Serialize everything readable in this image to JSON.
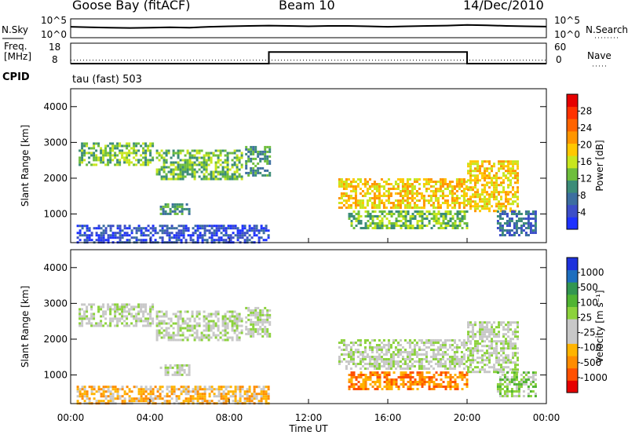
{
  "header": {
    "station": "Goose Bay (fitACF)",
    "beam": "Beam 10",
    "date": "14/Dec/2010",
    "cpid_label": "CPID",
    "cpid_value": "tau (fast) 503"
  },
  "chart_data": [
    {
      "type": "line",
      "name": "noise-panel",
      "left_label": "N.Sky",
      "right_label": "N.Search",
      "left_ticks": [
        "10^5",
        "10^0"
      ],
      "right_ticks": [
        "10^5",
        "10^0"
      ],
      "series": [
        {
          "values": [
            0.55,
            0.52,
            0.5,
            0.48,
            0.5,
            0.52,
            0.5,
            0.55,
            0.58,
            0.6,
            0.62,
            0.6,
            0.58,
            0.6,
            0.6,
            0.58,
            0.55,
            0.58,
            0.6,
            0.62,
            0.66,
            0.64,
            0.6,
            0.58,
            0.56
          ]
        }
      ]
    },
    {
      "type": "line",
      "name": "freq-nave-panel",
      "left_label_line1": "Freq.",
      "left_label_line2": "[MHz]",
      "right_label": "Nave",
      "left_ticks": [
        "18",
        "8"
      ],
      "right_ticks": [
        "60",
        "0"
      ],
      "frequency_mhz": {
        "x_hours": [
          0,
          10,
          10,
          20,
          20,
          24
        ],
        "values": [
          8,
          8,
          13.7,
          13.7,
          8,
          8
        ]
      },
      "nave": {
        "x_hours": [
          0,
          24
        ],
        "values": [
          10,
          10
        ]
      }
    },
    {
      "type": "heatmap",
      "name": "power-panel",
      "ylabel": "Slant Range [km]",
      "xlim": [
        0,
        24
      ],
      "ylim": [
        200,
        4500
      ],
      "yticks": [
        1000,
        2000,
        3000,
        4000
      ],
      "colorbar": {
        "label": "Power [dB]",
        "ticks": [
          "4",
          "8",
          "12",
          "16",
          "20",
          "24",
          "28"
        ],
        "colors": [
          "#1e32ff",
          "#3c4ec8",
          "#3c6ea0",
          "#3c8c78",
          "#6ebe3c",
          "#c8e61e",
          "#ffc800",
          "#ff9600",
          "#ff6400",
          "#ff3200",
          "#e60000"
        ]
      },
      "regions": [
        {
          "x0": 0.3,
          "x1": 10,
          "y0": 200,
          "y1": 700,
          "level": 1
        },
        {
          "x0": 0.4,
          "x1": 4.2,
          "y0": 2400,
          "y1": 3000,
          "level": 4
        },
        {
          "x0": 4.3,
          "x1": 8.6,
          "y0": 2000,
          "y1": 2800,
          "level": 4
        },
        {
          "x0": 8.8,
          "x1": 10,
          "y0": 2100,
          "y1": 2900,
          "level": 3
        },
        {
          "x0": 4.5,
          "x1": 6,
          "y0": 1000,
          "y1": 1300,
          "level": 3
        },
        {
          "x0": 13.5,
          "x1": 20,
          "y0": 1200,
          "y1": 2000,
          "level": 6
        },
        {
          "x0": 14,
          "x1": 20,
          "y0": 600,
          "y1": 1100,
          "level": 4
        },
        {
          "x0": 20,
          "x1": 22.5,
          "y0": 1100,
          "y1": 2500,
          "level": 6
        },
        {
          "x0": 21.5,
          "x1": 23.5,
          "y0": 400,
          "y1": 1100,
          "level": 2
        }
      ]
    },
    {
      "type": "heatmap",
      "name": "velocity-panel",
      "ylabel": "Slant Range [km]",
      "xlabel": "Time UT",
      "xlim": [
        0,
        24
      ],
      "ylim": [
        200,
        4500
      ],
      "yticks": [
        1000,
        2000,
        3000,
        4000
      ],
      "xticks": [
        "00:00",
        "04:00",
        "08:00",
        "12:00",
        "16:00",
        "20:00",
        "00:00"
      ],
      "colorbar": {
        "label": "Velocity [m s⁻¹]",
        "ticks": [
          "-1000",
          "-500",
          "-100",
          "-25",
          "25",
          "100",
          "500",
          "1000"
        ],
        "colors": [
          "#e60000",
          "#ff5000",
          "#ff8c00",
          "#ffb400",
          "#c8c8c8",
          "#c8c8c8",
          "#8cd23c",
          "#50b432",
          "#329650",
          "#1e6ebe",
          "#1e32dc"
        ]
      },
      "regions": [
        {
          "x0": 0.3,
          "x1": 10,
          "y0": 200,
          "y1": 700,
          "level": 3
        },
        {
          "x0": 0.4,
          "x1": 4.2,
          "y0": 2400,
          "y1": 3000,
          "level": 5
        },
        {
          "x0": 4.3,
          "x1": 8.6,
          "y0": 2000,
          "y1": 2800,
          "level": 5
        },
        {
          "x0": 8.8,
          "x1": 10,
          "y0": 2100,
          "y1": 2900,
          "level": 5
        },
        {
          "x0": 4.5,
          "x1": 6,
          "y0": 1000,
          "y1": 1300,
          "level": 5
        },
        {
          "x0": 13.5,
          "x1": 20,
          "y0": 1200,
          "y1": 2000,
          "level": 5
        },
        {
          "x0": 14,
          "x1": 20,
          "y0": 600,
          "y1": 1100,
          "level": 2
        },
        {
          "x0": 20,
          "x1": 22.5,
          "y0": 1100,
          "y1": 2500,
          "level": 5
        },
        {
          "x0": 21.5,
          "x1": 23.5,
          "y0": 400,
          "y1": 1100,
          "level": 6
        }
      ]
    }
  ]
}
